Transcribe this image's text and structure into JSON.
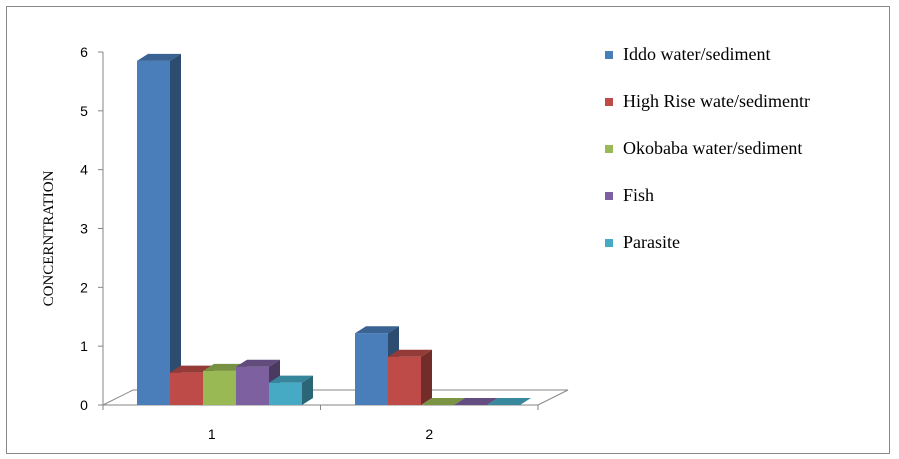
{
  "chart_data": {
    "type": "bar",
    "title": "",
    "xlabel": "",
    "ylabel": "CONCERNTRATION",
    "ylim": [
      0,
      6
    ],
    "yticks": [
      "0",
      "1",
      "2",
      "3",
      "4",
      "5",
      "6"
    ],
    "categories": [
      "1",
      "2"
    ],
    "legend_position": "right",
    "series": [
      {
        "name": "Iddo water/sediment",
        "color": "#4a7ebb",
        "values": [
          5.85,
          1.22
        ]
      },
      {
        "name": "High Rise wate/sedimentr",
        "color": "#be4b48",
        "values": [
          0.55,
          0.82
        ]
      },
      {
        "name": "Okobaba water/sediment",
        "color": "#98b954",
        "values": [
          0.58,
          0
        ]
      },
      {
        "name": "Fish",
        "color": "#7d60a0",
        "values": [
          0.65,
          0
        ]
      },
      {
        "name": "Parasite",
        "color": "#46aac5",
        "values": [
          0.38,
          0
        ]
      }
    ]
  }
}
